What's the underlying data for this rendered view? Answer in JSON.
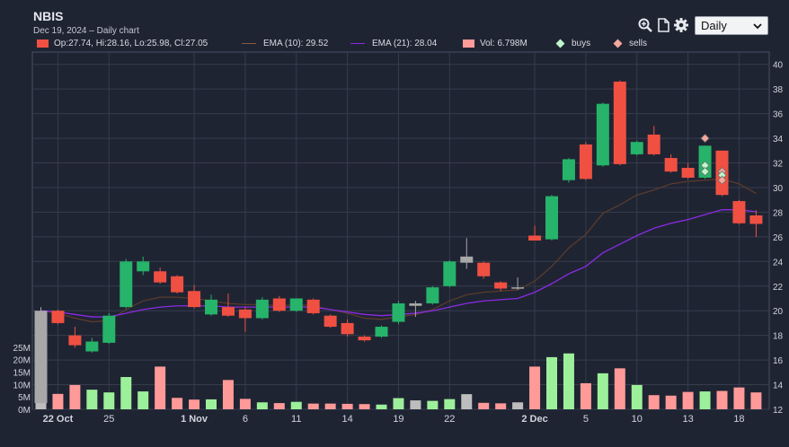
{
  "header": {
    "symbol": "NBIS",
    "subtitle": "Dec 19, 2024 – Daily chart",
    "timeframe": "Daily"
  },
  "toolbar": {
    "icons": [
      "zoom-icon",
      "document-icon",
      "gear-icon"
    ]
  },
  "legend": {
    "ohlc": "Op:27.74, Hi:28.16, Lo:25.98, Cl:27.05",
    "ema10": "EMA (10): 29.52",
    "ema21": "EMA (21): 28.04",
    "vol": "Vol: 6.798M",
    "buys": "buys",
    "sells": "sells"
  },
  "colors": {
    "up": "#26b36a",
    "down": "#ef5042",
    "flat": "#a8a8a8",
    "vol_up": "#9df09a",
    "vol_down": "#ff9a98",
    "ema10": "#5a3b2a",
    "ema21": "#8a2be2",
    "buy_marker": "#bff5c9",
    "sell_marker": "#f5a89c",
    "background": "#1f2433",
    "grid": "#363c4c"
  },
  "chart_data": {
    "type": "candlestick",
    "price_axis": {
      "min": 12,
      "max": 41,
      "ticks": [
        12,
        14,
        16,
        18,
        20,
        22,
        24,
        26,
        28,
        30,
        32,
        34,
        36,
        38,
        40
      ]
    },
    "volume_axis": {
      "min": 0,
      "max": 30,
      "unit": "M",
      "ticks": [
        0,
        5,
        10,
        15,
        20,
        25
      ],
      "tick_labels": [
        "0M",
        "5M",
        "10M",
        "15M",
        "20M",
        "25M"
      ]
    },
    "x_tick_labels": [
      "22 Oct",
      "25",
      "1 Nov",
      "6",
      "11",
      "14",
      "19",
      "22",
      "2 Dec",
      "5",
      "10",
      "13",
      "18"
    ],
    "x_tick_dates": [
      "2024-10-22",
      "2024-10-25",
      "2024-11-01",
      "2024-11-06",
      "2024-11-11",
      "2024-11-14",
      "2024-11-19",
      "2024-11-22",
      "2024-12-02",
      "2024-12-05",
      "2024-12-10",
      "2024-12-13",
      "2024-12-18"
    ],
    "bold_tick_labels": [
      "22 Oct",
      "1 Nov",
      "2 Dec"
    ],
    "dates": [
      "2024-10-21",
      "2024-10-22",
      "2024-10-23",
      "2024-10-24",
      "2024-10-25",
      "2024-10-28",
      "2024-10-29",
      "2024-10-30",
      "2024-10-31",
      "2024-11-01",
      "2024-11-04",
      "2024-11-05",
      "2024-11-06",
      "2024-11-07",
      "2024-11-08",
      "2024-11-11",
      "2024-11-12",
      "2024-11-13",
      "2024-11-14",
      "2024-11-15",
      "2024-11-18",
      "2024-11-19",
      "2024-11-20",
      "2024-11-21",
      "2024-11-22",
      "2024-11-25",
      "2024-11-26",
      "2024-11-27",
      "2024-11-29",
      "2024-12-02",
      "2024-12-03",
      "2024-12-04",
      "2024-12-05",
      "2024-12-06",
      "2024-12-09",
      "2024-12-10",
      "2024-12-11",
      "2024-12-12",
      "2024-12-13",
      "2024-12-16",
      "2024-12-17",
      "2024-12-18",
      "2024-12-19"
    ],
    "candles": [
      {
        "o": 12.5,
        "h": 20.3,
        "l": 12.5,
        "c": 20.0,
        "v": 6.2,
        "d": "flat"
      },
      {
        "o": 20.0,
        "h": 20.1,
        "l": 18.9,
        "c": 19.0,
        "v": 6.2,
        "d": "down"
      },
      {
        "o": 18.0,
        "h": 18.7,
        "l": 17.0,
        "c": 17.2,
        "v": 9.8,
        "d": "down"
      },
      {
        "o": 16.7,
        "h": 17.8,
        "l": 16.6,
        "c": 17.5,
        "v": 7.9,
        "d": "up"
      },
      {
        "o": 17.4,
        "h": 19.8,
        "l": 17.3,
        "c": 19.6,
        "v": 6.8,
        "d": "up"
      },
      {
        "o": 20.3,
        "h": 24.2,
        "l": 20.2,
        "c": 24.0,
        "v": 13.0,
        "d": "up"
      },
      {
        "o": 23.2,
        "h": 24.4,
        "l": 22.9,
        "c": 24.0,
        "v": 7.2,
        "d": "up"
      },
      {
        "o": 23.2,
        "h": 23.5,
        "l": 22.2,
        "c": 22.3,
        "v": 17.2,
        "d": "down"
      },
      {
        "o": 22.8,
        "h": 22.9,
        "l": 21.4,
        "c": 21.5,
        "v": 4.6,
        "d": "down"
      },
      {
        "o": 21.6,
        "h": 22.1,
        "l": 20.2,
        "c": 20.3,
        "v": 3.9,
        "d": "down"
      },
      {
        "o": 20.9,
        "h": 21.3,
        "l": 19.6,
        "c": 19.7,
        "v": 4.0,
        "d": "up"
      },
      {
        "o": 20.3,
        "h": 21.4,
        "l": 19.5,
        "c": 19.6,
        "v": 11.8,
        "d": "down"
      },
      {
        "o": 19.4,
        "h": 20.3,
        "l": 18.3,
        "c": 20.1,
        "v": 4.2,
        "d": "down"
      },
      {
        "o": 19.4,
        "h": 21.1,
        "l": 19.3,
        "c": 20.9,
        "v": 2.8,
        "d": "up"
      },
      {
        "o": 21.0,
        "h": 21.2,
        "l": 19.9,
        "c": 20.0,
        "v": 2.5,
        "d": "down"
      },
      {
        "o": 20.0,
        "h": 21.0,
        "l": 19.9,
        "c": 21.0,
        "v": 3.0,
        "d": "up"
      },
      {
        "o": 20.9,
        "h": 21.0,
        "l": 19.7,
        "c": 19.8,
        "v": 2.3,
        "d": "down"
      },
      {
        "o": 19.6,
        "h": 19.7,
        "l": 18.6,
        "c": 18.7,
        "v": 2.3,
        "d": "down"
      },
      {
        "o": 19.0,
        "h": 19.3,
        "l": 17.9,
        "c": 18.1,
        "v": 2.2,
        "d": "down"
      },
      {
        "o": 17.9,
        "h": 18.0,
        "l": 17.5,
        "c": 17.6,
        "v": 2.1,
        "d": "down"
      },
      {
        "o": 17.9,
        "h": 18.8,
        "l": 17.8,
        "c": 18.7,
        "v": 1.9,
        "d": "up"
      },
      {
        "o": 19.1,
        "h": 20.8,
        "l": 18.9,
        "c": 20.6,
        "v": 4.5,
        "d": "up"
      },
      {
        "o": 20.4,
        "h": 20.8,
        "l": 19.5,
        "c": 20.6,
        "v": 3.6,
        "d": "flat"
      },
      {
        "o": 20.6,
        "h": 22.0,
        "l": 20.5,
        "c": 21.9,
        "v": 3.4,
        "d": "up"
      },
      {
        "o": 22.0,
        "h": 24.1,
        "l": 21.9,
        "c": 24.0,
        "v": 4.1,
        "d": "up"
      },
      {
        "o": 24.4,
        "h": 25.9,
        "l": 23.4,
        "c": 23.9,
        "v": 6.1,
        "d": "flat"
      },
      {
        "o": 23.9,
        "h": 24.0,
        "l": 22.6,
        "c": 22.8,
        "v": 2.6,
        "d": "down"
      },
      {
        "o": 22.3,
        "h": 22.4,
        "l": 21.6,
        "c": 21.8,
        "v": 2.4,
        "d": "down"
      },
      {
        "o": 21.8,
        "h": 22.7,
        "l": 21.7,
        "c": 21.9,
        "v": 2.8,
        "d": "flat"
      },
      {
        "o": 26.1,
        "h": 26.9,
        "l": 25.7,
        "c": 25.7,
        "v": 17.2,
        "d": "down"
      },
      {
        "o": 25.8,
        "h": 29.4,
        "l": 25.7,
        "c": 29.3,
        "v": 21.0,
        "d": "up"
      },
      {
        "o": 30.6,
        "h": 32.4,
        "l": 30.4,
        "c": 32.3,
        "v": 22.5,
        "d": "up"
      },
      {
        "o": 33.5,
        "h": 33.7,
        "l": 30.6,
        "c": 30.7,
        "v": 10.5,
        "d": "down"
      },
      {
        "o": 31.8,
        "h": 36.9,
        "l": 31.7,
        "c": 36.8,
        "v": 14.5,
        "d": "up"
      },
      {
        "o": 38.6,
        "h": 38.7,
        "l": 31.8,
        "c": 31.9,
        "v": 16.5,
        "d": "down"
      },
      {
        "o": 32.7,
        "h": 33.8,
        "l": 32.6,
        "c": 33.7,
        "v": 9.8,
        "d": "up"
      },
      {
        "o": 34.3,
        "h": 35.0,
        "l": 32.6,
        "c": 32.7,
        "v": 5.7,
        "d": "down"
      },
      {
        "o": 32.4,
        "h": 32.7,
        "l": 31.2,
        "c": 31.3,
        "v": 5.5,
        "d": "down"
      },
      {
        "o": 31.6,
        "h": 32.0,
        "l": 30.7,
        "c": 30.8,
        "v": 7.0,
        "d": "down"
      },
      {
        "o": 30.8,
        "h": 33.4,
        "l": 30.7,
        "c": 33.4,
        "v": 7.2,
        "d": "up"
      },
      {
        "o": 33.0,
        "h": 33.0,
        "l": 29.3,
        "c": 29.4,
        "v": 7.4,
        "d": "down"
      },
      {
        "o": 28.9,
        "h": 29.0,
        "l": 27.0,
        "c": 27.1,
        "v": 8.8,
        "d": "down"
      },
      {
        "o": 27.74,
        "h": 28.16,
        "l": 25.98,
        "c": 27.05,
        "v": 6.798,
        "d": "down"
      }
    ],
    "ema10": [
      20.0,
      19.8,
      19.4,
      19.1,
      19.2,
      20.1,
      20.8,
      21.1,
      21.1,
      21.0,
      20.8,
      20.6,
      20.5,
      20.5,
      20.4,
      20.5,
      20.4,
      20.1,
      19.8,
      19.4,
      19.3,
      19.5,
      19.7,
      20.1,
      20.8,
      21.3,
      21.5,
      21.6,
      21.7,
      22.4,
      23.6,
      25.1,
      26.2,
      27.9,
      28.6,
      29.4,
      29.8,
      30.3,
      30.5,
      30.6,
      30.7,
      30.3,
      29.52
    ],
    "ema21": [
      20.0,
      19.9,
      19.7,
      19.5,
      19.5,
      19.8,
      20.1,
      20.3,
      20.4,
      20.4,
      20.4,
      20.3,
      20.3,
      20.3,
      20.3,
      20.3,
      20.3,
      20.1,
      19.9,
      19.7,
      19.6,
      19.7,
      19.8,
      20.0,
      20.3,
      20.6,
      20.8,
      20.9,
      21.0,
      21.5,
      22.2,
      23.0,
      23.6,
      24.7,
      25.4,
      26.1,
      26.7,
      27.1,
      27.4,
      27.8,
      28.2,
      28.2,
      28.04
    ],
    "trades": [
      {
        "date": "2024-12-16",
        "type": "sell",
        "price": 34.0
      },
      {
        "date": "2024-12-16",
        "type": "buy",
        "price": 31.8
      },
      {
        "date": "2024-12-16",
        "type": "buy",
        "price": 31.3
      },
      {
        "date": "2024-12-17",
        "type": "sell",
        "price": 31.3
      },
      {
        "date": "2024-12-17",
        "type": "buy",
        "price": 31.0
      },
      {
        "date": "2024-12-17",
        "type": "sell",
        "price": 30.6
      }
    ]
  }
}
